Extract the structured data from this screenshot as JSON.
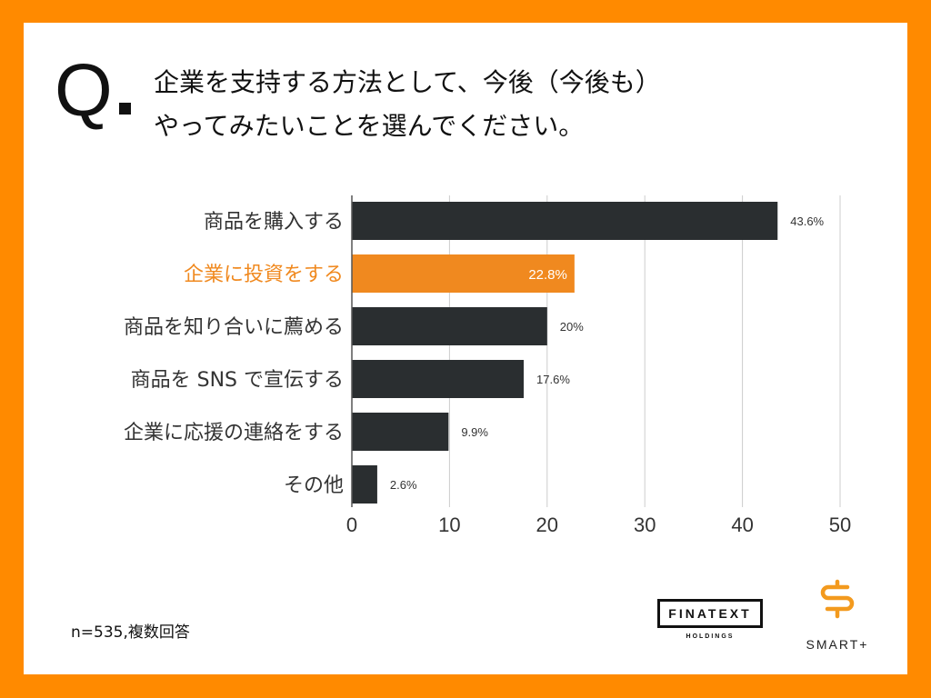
{
  "question": {
    "mark": "Q",
    "line1": "企業を支持する方法として、今後（今後も）",
    "line2": "やってみたいことを選んでください。"
  },
  "chart_data": {
    "type": "bar",
    "orientation": "horizontal",
    "categories": [
      "商品を購入する",
      "企業に投資をする",
      "商品を知り合いに薦める",
      "商品を SNS で宣伝する",
      "企業に応援の連絡をする",
      "その他"
    ],
    "values": [
      43.6,
      22.8,
      20,
      17.6,
      9.9,
      2.6
    ],
    "value_labels": [
      "43.6%",
      "22.8%",
      "20%",
      "17.6%",
      "9.9%",
      "2.6%"
    ],
    "highlight_index": 1,
    "xlim": [
      0,
      50
    ],
    "xticks": [
      0,
      10,
      20,
      30,
      40,
      50
    ],
    "grid": true,
    "colors": {
      "bar": "#2A2E30",
      "highlight": "#F0891F",
      "grid": "#CCCCCC"
    }
  },
  "footnote": "n=535,複数回答",
  "logos": {
    "finatext": "FINATEXT",
    "finatext_sub": "HOLDINGS",
    "smart": "SMART+",
    "smart_color": "#F39A1E"
  }
}
